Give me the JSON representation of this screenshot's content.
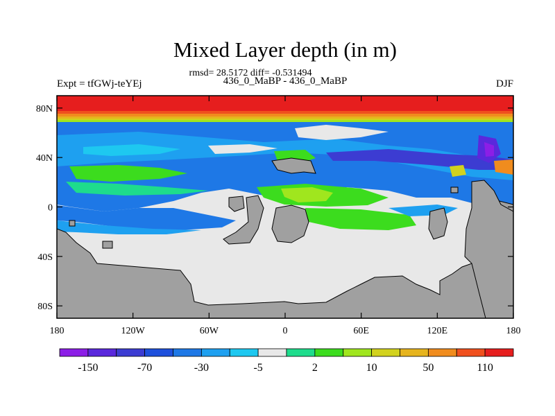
{
  "chart_data": {
    "type": "heatmap",
    "title": "Mixed Layer depth (in m)",
    "subtitle": "rmsd= 28.5172 diff= -0.531494",
    "left_label": "Expt = tfGWj-teYEj",
    "center_label": "436_0_MaBP - 436_0_MaBP",
    "right_label": "DJF",
    "x_ticks": [
      "180",
      "120W",
      "60W",
      "0",
      "60E",
      "120E",
      "180"
    ],
    "x_tick_values": [
      -180,
      -120,
      -60,
      0,
      60,
      120,
      180
    ],
    "y_ticks": [
      "80N",
      "40N",
      "0",
      "40S",
      "80S"
    ],
    "y_tick_values": [
      80,
      40,
      0,
      -40,
      -80
    ],
    "xlim": [
      -180,
      180
    ],
    "ylim": [
      -90,
      90
    ],
    "colorbar": {
      "colors": [
        "#8c1ee6",
        "#5a28dc",
        "#3c3cd2",
        "#1e50dc",
        "#1e78e6",
        "#1ea0f0",
        "#1ec8f0",
        "#e8e8e8",
        "#1edc8c",
        "#3cdc1e",
        "#a0e61e",
        "#d2d21e",
        "#e6b41e",
        "#f08c1e",
        "#f0501e",
        "#e61e1e"
      ],
      "labels": [
        "-150",
        "-70",
        "-30",
        "-5",
        "2",
        "10",
        "50",
        "110"
      ]
    },
    "land_color": "#a0a0a0",
    "fill_color": "#e8e8e8"
  }
}
